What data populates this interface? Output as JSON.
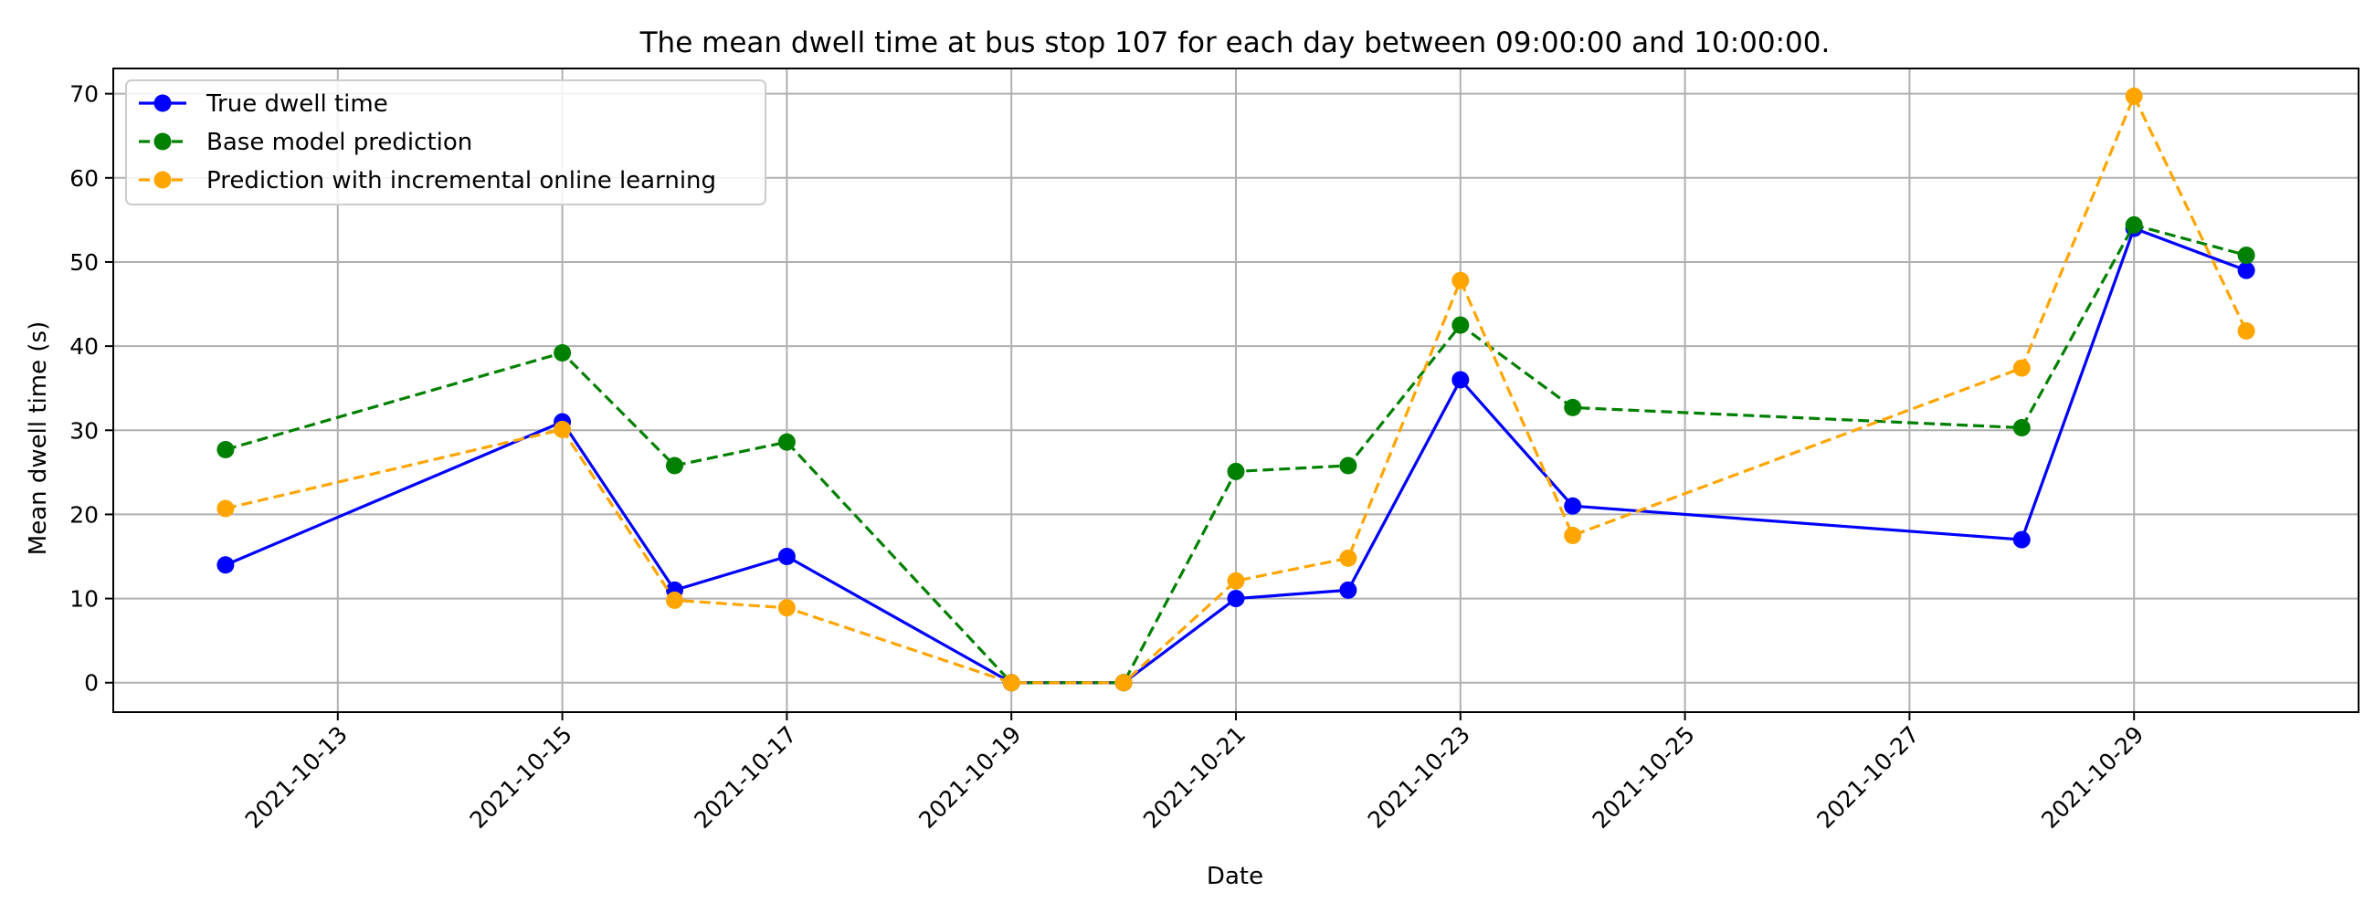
{
  "chart_data": {
    "type": "line",
    "title": "The mean dwell time at bus stop 107 for each day between 09:00:00 and 10:00:00.",
    "xlabel": "Date",
    "ylabel": "Mean dwell time (s)",
    "x_ticks": [
      "2021-10-13",
      "2021-10-15",
      "2021-10-17",
      "2021-10-19",
      "2021-10-21",
      "2021-10-23",
      "2021-10-25",
      "2021-10-27",
      "2021-10-29"
    ],
    "y_ticks": [
      0,
      10,
      20,
      30,
      40,
      50,
      60,
      70
    ],
    "xlim": [
      "2021-10-11",
      "2021-10-31"
    ],
    "ylim": [
      -3.5,
      73.0
    ],
    "grid": true,
    "legend_position": "top-left",
    "x": [
      "2021-10-12",
      "2021-10-15",
      "2021-10-16",
      "2021-10-17",
      "2021-10-19",
      "2021-10-20",
      "2021-10-21",
      "2021-10-22",
      "2021-10-23",
      "2021-10-24",
      "2021-10-28",
      "2021-10-29",
      "2021-10-30"
    ],
    "series": [
      {
        "name": "True dwell time",
        "color": "#0000ff",
        "dashed": false,
        "values": [
          14,
          31,
          11,
          15,
          0,
          0,
          10,
          11,
          36,
          21,
          17,
          54,
          49
        ]
      },
      {
        "name": "Base model prediction",
        "color": "#008000",
        "dashed": true,
        "values": [
          27.7,
          39.2,
          25.8,
          28.6,
          0,
          0,
          25.1,
          25.8,
          42.5,
          32.7,
          30.3,
          54.4,
          50.8
        ]
      },
      {
        "name": "Prediction with incremental online learning",
        "color": "#ffa500",
        "dashed": true,
        "values": [
          20.7,
          30.1,
          9.8,
          8.9,
          0,
          0,
          12.1,
          14.8,
          47.8,
          17.5,
          37.4,
          69.7,
          41.8
        ]
      }
    ]
  }
}
